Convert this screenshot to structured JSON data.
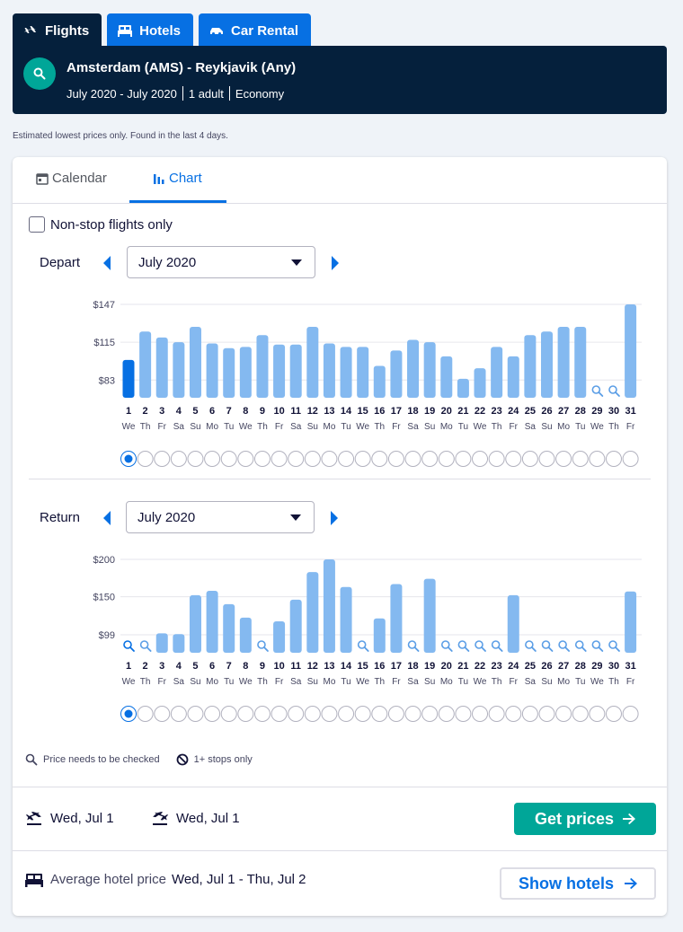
{
  "tabs": [
    {
      "label": "Flights",
      "icon": "plane-icon",
      "active": true
    },
    {
      "label": "Hotels",
      "icon": "bed-icon",
      "active": false
    },
    {
      "label": "Car Rental",
      "icon": "car-icon",
      "active": false
    }
  ],
  "summary": {
    "route": "Amsterdam (AMS) - Reykjavik (Any)",
    "dates": "July 2020 - July 2020",
    "travellers": "1 adult",
    "cabin": "Economy"
  },
  "note": "Estimated lowest prices only. Found in the last 4 days.",
  "view_tabs": {
    "calendar": "Calendar",
    "chart": "Chart"
  },
  "nonstop_label": "Non-stop flights only",
  "depart": {
    "label": "Depart",
    "month": "July 2020"
  },
  "return": {
    "label": "Return",
    "month": "July 2020"
  },
  "legend": {
    "check": "Price needs to be checked",
    "stops": "1+ stops only"
  },
  "footer": {
    "outbound_date": "Wed, Jul 1",
    "return_date": "Wed, Jul 1",
    "get_prices": "Get prices",
    "hotel_label": "Average hotel price",
    "hotel_dates": "Wed, Jul 1 - Thu, Jul 2",
    "show_hotels": "Show hotels"
  },
  "colors": {
    "bar": "#84b9f0",
    "selected_bar": "#0770e3",
    "cta": "#00a698",
    "header": "#05203c"
  },
  "chart_data": [
    {
      "type": "bar",
      "title": "Depart",
      "ticks": [
        "$147",
        "$115",
        "$83"
      ],
      "tick_values": [
        147,
        115,
        83
      ],
      "ylim": [
        68,
        147
      ],
      "days": [
        "1",
        "2",
        "3",
        "4",
        "5",
        "6",
        "7",
        "8",
        "9",
        "10",
        "11",
        "12",
        "13",
        "14",
        "15",
        "16",
        "17",
        "18",
        "19",
        "20",
        "21",
        "22",
        "23",
        "24",
        "25",
        "26",
        "27",
        "28",
        "29",
        "30",
        "31"
      ],
      "weekdays": [
        "We",
        "Th",
        "Fr",
        "Sa",
        "Su",
        "Mo",
        "Tu",
        "We",
        "Th",
        "Fr",
        "Sa",
        "Su",
        "Mo",
        "Tu",
        "We",
        "Th",
        "Fr",
        "Sa",
        "Su",
        "Mo",
        "Tu",
        "We",
        "Th",
        "Fr",
        "Sa",
        "Su",
        "Mo",
        "Tu",
        "We",
        "Th",
        "Fr"
      ],
      "values": [
        100,
        124,
        119,
        115,
        128,
        114,
        110,
        111,
        121,
        113,
        113,
        128,
        114,
        111,
        111,
        95,
        108,
        117,
        115,
        103,
        84,
        93,
        111,
        103,
        121,
        124,
        128,
        128,
        null,
        null,
        147
      ],
      "selected_index": 0
    },
    {
      "type": "bar",
      "title": "Return",
      "ticks": [
        "$200",
        "$150",
        "$99"
      ],
      "tick_values": [
        200,
        150,
        99
      ],
      "ylim": [
        75,
        200
      ],
      "days": [
        "1",
        "2",
        "3",
        "4",
        "5",
        "6",
        "7",
        "8",
        "9",
        "10",
        "11",
        "12",
        "13",
        "14",
        "15",
        "16",
        "17",
        "18",
        "19",
        "20",
        "21",
        "22",
        "23",
        "24",
        "25",
        "26",
        "27",
        "28",
        "29",
        "30",
        "31"
      ],
      "weekdays": [
        "We",
        "Th",
        "Fr",
        "Sa",
        "Su",
        "Mo",
        "Tu",
        "We",
        "Th",
        "Fr",
        "Sa",
        "Su",
        "Mo",
        "Tu",
        "We",
        "Th",
        "Fr",
        "Sa",
        "Su",
        "Mo",
        "Tu",
        "We",
        "Th",
        "Fr",
        "Sa",
        "Su",
        "Mo",
        "Tu",
        "We",
        "Th",
        "Fr"
      ],
      "values": [
        null,
        null,
        101,
        100,
        152,
        158,
        140,
        122,
        null,
        117,
        146,
        183,
        200,
        163,
        null,
        121,
        167,
        null,
        174,
        null,
        null,
        null,
        null,
        152,
        null,
        null,
        null,
        null,
        null,
        null,
        157
      ],
      "selected_index": 0
    }
  ]
}
